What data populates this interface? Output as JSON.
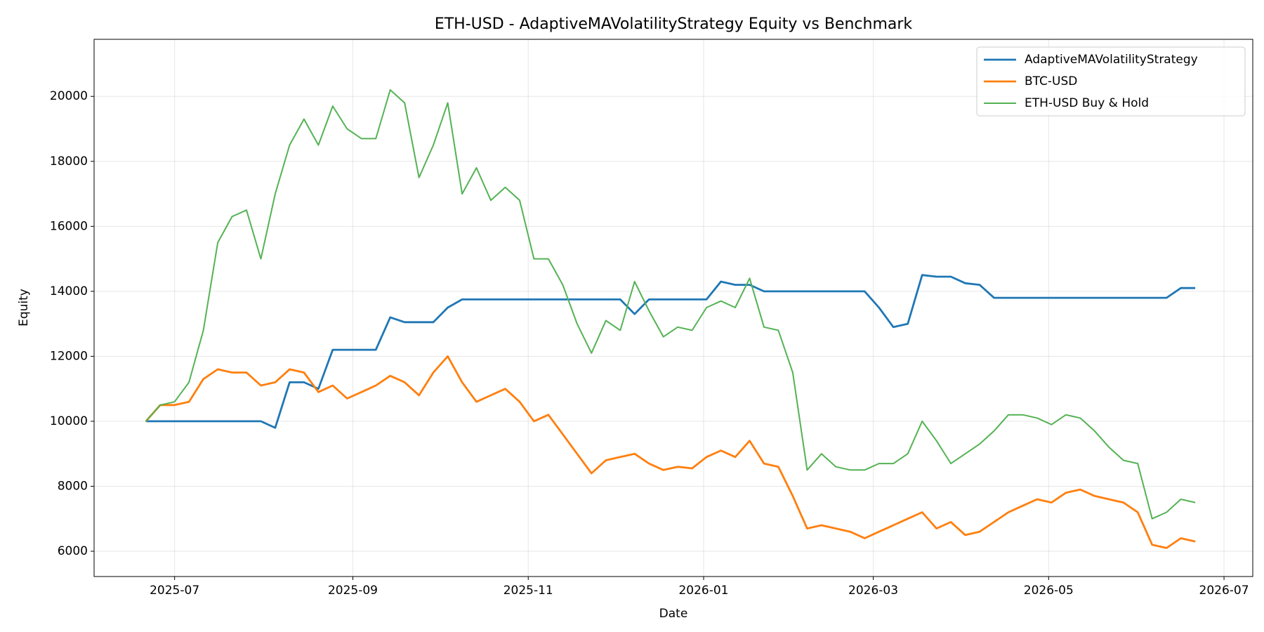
{
  "chart_data": {
    "type": "line",
    "title": "ETH-USD - AdaptiveMAVolatilityStrategy Equity vs Benchmark",
    "xlabel": "Date",
    "ylabel": "Equity",
    "x": [
      "2025-06-21",
      "2025-06-26",
      "2025-07-01",
      "2025-07-06",
      "2025-07-11",
      "2025-07-16",
      "2025-07-21",
      "2025-07-26",
      "2025-07-31",
      "2025-08-05",
      "2025-08-10",
      "2025-08-15",
      "2025-08-20",
      "2025-08-25",
      "2025-08-30",
      "2025-09-04",
      "2025-09-09",
      "2025-09-14",
      "2025-09-19",
      "2025-09-24",
      "2025-09-29",
      "2025-10-04",
      "2025-10-09",
      "2025-10-14",
      "2025-10-19",
      "2025-10-24",
      "2025-10-29",
      "2025-11-03",
      "2025-11-08",
      "2025-11-13",
      "2025-11-18",
      "2025-11-23",
      "2025-11-28",
      "2025-12-03",
      "2025-12-08",
      "2025-12-13",
      "2025-12-18",
      "2025-12-23",
      "2025-12-28",
      "2026-01-02",
      "2026-01-07",
      "2026-01-12",
      "2026-01-17",
      "2026-01-22",
      "2026-01-27",
      "2026-02-01",
      "2026-02-06",
      "2026-02-11",
      "2026-02-16",
      "2026-02-21",
      "2026-02-26",
      "2026-03-03",
      "2026-03-08",
      "2026-03-13",
      "2026-03-18",
      "2026-03-23",
      "2026-03-28",
      "2026-04-02",
      "2026-04-07",
      "2026-04-12",
      "2026-04-17",
      "2026-04-22",
      "2026-04-27",
      "2026-05-02",
      "2026-05-07",
      "2026-05-12",
      "2026-05-17",
      "2026-05-22",
      "2026-05-27",
      "2026-06-01",
      "2026-06-06",
      "2026-06-11",
      "2026-06-16",
      "2026-06-21"
    ],
    "series": [
      {
        "name": "AdaptiveMAVolatilityStrategy",
        "color": "#1f77b4",
        "width": 2.8,
        "values": [
          10000,
          10000,
          10000,
          10000,
          10000,
          10000,
          10000,
          10000,
          10000,
          9800,
          11200,
          11200,
          11000,
          12200,
          12200,
          12200,
          12200,
          13200,
          13050,
          13050,
          13050,
          13500,
          13750,
          13750,
          13750,
          13750,
          13750,
          13750,
          13750,
          13750,
          13750,
          13750,
          13750,
          13750,
          13300,
          13750,
          13750,
          13750,
          13750,
          13750,
          14300,
          14200,
          14200,
          14000,
          14000,
          14000,
          14000,
          14000,
          14000,
          14000,
          14000,
          13500,
          12900,
          13000,
          14500,
          14450,
          14450,
          14250,
          14200,
          13800,
          13800,
          13800,
          13800,
          13800,
          13800,
          13800,
          13800,
          13800,
          13800,
          13800,
          13800,
          13800,
          14100,
          14100
        ]
      },
      {
        "name": "BTC-USD",
        "color": "#ff7f0e",
        "width": 2.8,
        "values": [
          10000,
          10500,
          10500,
          10600,
          11300,
          11600,
          11500,
          11500,
          11100,
          11200,
          11600,
          11500,
          10900,
          11100,
          10700,
          10900,
          11100,
          11400,
          11200,
          10800,
          11500,
          12000,
          11200,
          10600,
          10800,
          11000,
          10600,
          10000,
          10200,
          9600,
          9000,
          8400,
          8800,
          8900,
          9000,
          8700,
          8500,
          8600,
          8550,
          8900,
          9100,
          8900,
          9400,
          8700,
          8600,
          7700,
          6700,
          6800,
          6700,
          6600,
          6400,
          6600,
          6800,
          7000,
          7200,
          6700,
          6900,
          6500,
          6600,
          6900,
          7200,
          7400,
          7600,
          7500,
          7800,
          7900,
          7700,
          7600,
          7500,
          7200,
          6200,
          6100,
          6400,
          6300
        ]
      },
      {
        "name": "ETH-USD Buy & Hold",
        "color": "#54b254",
        "width": 2,
        "values": [
          10000,
          10500,
          10600,
          11200,
          12800,
          15500,
          16300,
          16500,
          15000,
          17000,
          18500,
          19300,
          18500,
          19700,
          19000,
          18700,
          18700,
          20200,
          19800,
          17500,
          18500,
          19800,
          17000,
          17800,
          16800,
          17200,
          16800,
          15000,
          15000,
          14200,
          13000,
          12100,
          13100,
          12800,
          14300,
          13400,
          12600,
          12900,
          12800,
          13500,
          13700,
          13500,
          14400,
          12900,
          12800,
          11500,
          8500,
          9000,
          8600,
          8500,
          8500,
          8700,
          8700,
          9000,
          10000,
          9400,
          8700,
          9000,
          9300,
          9700,
          10200,
          10200,
          10100,
          9900,
          10200,
          10100,
          9700,
          9200,
          8800,
          8700,
          7000,
          7200,
          7600,
          7500
        ]
      }
    ],
    "xlim": [
      "2025-06-03",
      "2026-07-11"
    ],
    "xticks": [
      "2025-07",
      "2025-09",
      "2025-11",
      "2026-01",
      "2026-03",
      "2026-05",
      "2026-07"
    ],
    "ylim": [
      5222,
      21756
    ],
    "yticks": [
      6000,
      8000,
      10000,
      12000,
      14000,
      16000,
      18000,
      20000
    ],
    "grid": true,
    "legend": "upper right"
  }
}
